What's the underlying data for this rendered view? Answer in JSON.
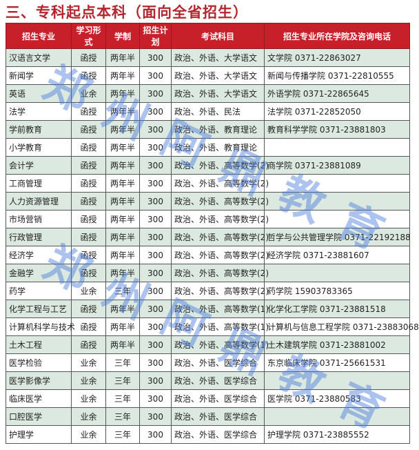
{
  "title": "三、专科起点本科（面向全省招生）",
  "headers": [
    "招生专业",
    "学习形式",
    "学制",
    "招生计划",
    "考试科目",
    "招生专业所在学院及咨询电话"
  ],
  "rows": [
    [
      "汉语言文学",
      "函授",
      "两年半",
      "300",
      "政治、外语、大学语文",
      "文学院  0371-22863027"
    ],
    [
      "新闻学",
      "函授",
      "两年半",
      "300",
      "政治、外语、大学语文",
      "新闻与传播学院  0371-22810555"
    ],
    [
      "英语",
      "业余",
      "两年半",
      "300",
      "政治、外语、大学语文",
      "外语学院  0371-22865645"
    ],
    [
      "法学",
      "函授",
      "两年半",
      "300",
      "政治、外语、民法",
      "法学院  0371-22852050"
    ],
    [
      "学前教育",
      "函授",
      "两年半",
      "300",
      "政治、外语、教育理论",
      "教育科学学院  0371-23881803"
    ],
    [
      "小学教育",
      "函授",
      "两年半",
      "300",
      "政治、外语、教育理论",
      ""
    ],
    [
      "会计学",
      "函授",
      "两年半",
      "300",
      "政治、外语、高等数学(2)",
      "商学院  0371-23881089"
    ],
    [
      "工商管理",
      "函授",
      "两年半",
      "300",
      "政治、外语、高等数学(2)",
      ""
    ],
    [
      "人力资源管理",
      "函授",
      "两年半",
      "300",
      "政治、外语、高等数学(2)",
      ""
    ],
    [
      "市场营销",
      "函授",
      "两年半",
      "300",
      "政治、外语、高等数学(2)",
      ""
    ],
    [
      "行政管理",
      "函授",
      "两年半",
      "300",
      "政治、外语、高等数学(2)",
      "哲学与公共管理学院  0371-22192188"
    ],
    [
      "经济学",
      "函授",
      "两年半",
      "300",
      "政治、外语、高等数学(2)",
      "经济学院  0371-23881607"
    ],
    [
      "金融学",
      "函授",
      "两年半",
      "300",
      "政治、外语、高等数学(2)",
      ""
    ],
    [
      "药学",
      "业余",
      "三年",
      "300",
      "政治、外语、高等数学(2)",
      "药学院  15903783365"
    ],
    [
      "化学工程与工艺",
      "函授",
      "两年半",
      "300",
      "政治、外语、高等数学(1)",
      "化学化工学院  0371-23881518"
    ],
    [
      "计算机科学与技术",
      "函授",
      "两年半",
      "300",
      "政治、外语、高等数学(1)",
      "计算机与信息工程学院  0371-23883068"
    ],
    [
      "土木工程",
      "函授",
      "两年半",
      "300",
      "政治、外语、高等数学(1)",
      "土木建筑学院  0371-23881002"
    ],
    [
      "医学检验",
      "业余",
      "三年",
      "300",
      "政治、外语、医学综合",
      "东京临床学院  0371-25661531"
    ],
    [
      "医学影像学",
      "业余",
      "三年",
      "300",
      "政治、外语、医学综合",
      ""
    ],
    [
      "临床医学",
      "业余",
      "三年",
      "300",
      "政治、外语、医学综合",
      "医学院  0371-23880583"
    ],
    [
      "口腔医学",
      "业余",
      "三年",
      "300",
      "政治、外语、医学综合",
      ""
    ],
    [
      "护理学",
      "业余",
      "三年",
      "300",
      "政治、外语、医学综合",
      "护理学院  0371-23885552"
    ]
  ],
  "watermark": "郑州阿鼎教育",
  "colors": {
    "header": "#c8202a",
    "title": "#b3262d",
    "band": "#dce9e0"
  }
}
